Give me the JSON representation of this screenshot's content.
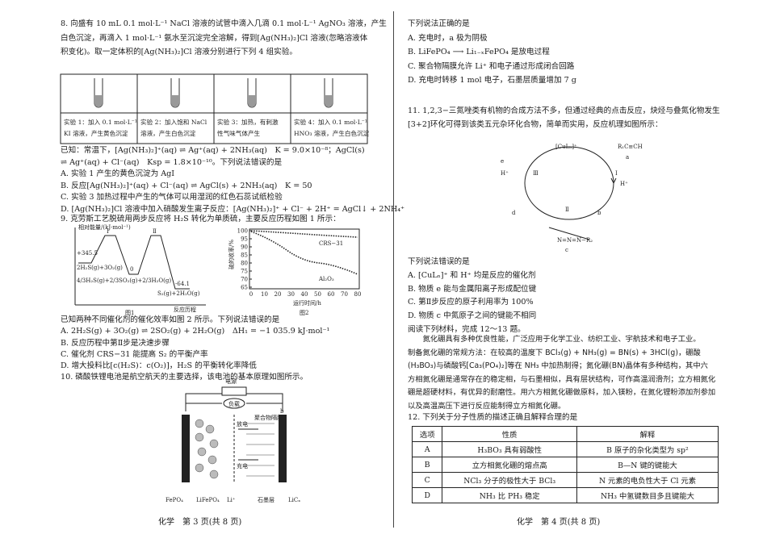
{
  "left": {
    "q8": {
      "lines": [
        "8. 向盛有 10 mL 0.1 mol·L⁻¹ NaCl 溶液的试管中滴入几滴 0.1 mol·L⁻¹ AgNO₃ 溶液，产生",
        "白色沉淀，再滴入 1 mol·L⁻¹ 氨水至沉淀完全溶解，得到[Ag(NH₃)₂]Cl 溶液(忽略溶液体",
        "积变化)。取一定体积的[Ag(NH₃)₂]Cl 溶液分别进行下列 4 组实验。"
      ],
      "table": [
        [
          "实验 1：加入 0.1 mol·L⁻¹",
          "KI 溶液，产生黄色沉淀"
        ],
        [
          "实验 2：加入饱和 NaCl",
          "溶液，产生白色沉淀"
        ],
        [
          "实验 3：加热，有刺激",
          "性气味气体产生"
        ],
        [
          "实验 4：加入 0.1 mol·L⁻¹",
          "HNO₃ 溶液，产生白色沉淀"
        ]
      ],
      "after": [
        "已知：常温下，[Ag(NH₃)₂]⁺(aq) ⇌ Ag⁺(aq) + 2NH₃(aq)　K = 9.0×10⁻⁸；AgCl(s)",
        "⇌ Ag⁺(aq) + Cl⁻(aq)　Ksp = 1.8×10⁻¹⁰。下列说法错误的是",
        "A. 实验 1 产生的黄色沉淀为 AgI",
        "B. 反应[Ag(NH₃)₂]⁺(aq) + Cl⁻(aq) ⇌ AgCl(s) + 2NH₃(aq)　K = 50",
        "C. 实验 3 加热过程中产生的气体可以用湿润的红色石蕊试纸检验",
        "D. [Ag(NH₃)₂]Cl 溶液中加入硝酸发生离子反应：[Ag(NH₃)₂]⁺ + Cl⁻ + 2H⁺ = AgCl↓ + 2NH₄⁺"
      ]
    },
    "q9": {
      "lines": [
        "9. 克劳斯工艺脱硫用两步反应将 H₂S 转化为单质硫，主要反应历程如图 1 所示："
      ],
      "fig1": {
        "ylabel": "相对能量/(kJ·mol⁻¹)",
        "step1": "Ⅰ",
        "step2": "Ⅱ",
        "peak": "+345.5",
        "start": "2H₂S(g)+3O₂(g)",
        "zero": "0",
        "mid": "4/3H₂S(g)+2/3SO₂(g)+2/3H₂O(g)",
        "end_value": "-64.1",
        "end": "S₂(g)+2H₂O(g)",
        "xlabel": "反应历程",
        "caption": "图1"
      },
      "fig2": {
        "ylabel": "硫的收率/%",
        "yticks": [
          "100",
          "95",
          "90",
          "85",
          "80",
          "75",
          "70",
          "65"
        ],
        "xticks": [
          "0",
          "10",
          "20",
          "30",
          "40",
          "50",
          "60",
          "70",
          "80"
        ],
        "series1": "CRS−31",
        "series2": "Al₂O₃",
        "xlabel": "运行时间/h",
        "caption": "图2"
      },
      "after": [
        "已知两种不同催化剂的催化效率如图 2 所示。下列说法错误的是",
        "A. 2H₂S(g) + 3O₂(g) ⇌ 2SO₂(g) + 2H₂O(g)　ΔH₁ = −1 035.9 kJ·mol⁻¹",
        "B. 反应历程中第Ⅱ步是决速步骤",
        "C. 催化剂 CRS−31 能提高 S₂ 的平衡产率",
        "D. 增大投料比[c(H₂S)：c(O₂)]，H₂S 的平衡转化率降低"
      ]
    },
    "q10": {
      "lines": [
        "10. 磷酸铁锂电池是航空航天的主要选择，该电池的基本原理如图所示。"
      ],
      "fig": {
        "power": "电源",
        "load": "负载",
        "membrane": "聚合物隔膜",
        "a": "a",
        "b": "b",
        "discharge": "放电",
        "charge": "充电",
        "legend": [
          "FePO₄",
          "LiFePO₄",
          "Li⁺",
          "石墨层",
          "LiCₓ"
        ]
      }
    }
  },
  "right": {
    "q10_options": [
      "下列说法正确的是",
      "A. 充电时，a 极为阴极",
      "B. LiFePO₄ ⟶ Li₁₋ₓFePO₄ 是放电过程",
      "C. 聚合物隔膜允许 Li⁺ 和电子通过形成闭合回路",
      "D. 充电时转移 1 mol 电子，石墨层质量增加 7 g"
    ],
    "q11": {
      "lines": [
        "11. 1,2,3−三氮唑类有机物的合成方法不多，但通过经典的点击反应，炔烃与叠氮化物发生",
        "[3+2]环化可得到该类五元杂环化合物，简单而实用，反应机理如图所示："
      ],
      "fig": {
        "catalyst": "[CuLₙ]⁺",
        "alkyne": "R₁C≡CH",
        "a": "a",
        "step1": "Ⅰ",
        "h1": "H⁺",
        "b": "b",
        "azide": "N=N=N−R₂",
        "c": "c",
        "step2": "Ⅱ",
        "d": "d",
        "step3": "Ⅲ",
        "h2": "H⁺",
        "e": "e"
      },
      "after": [
        "下列说法错误的是",
        "A. [CuLₙ]⁺ 和 H⁺ 均是反应的催化剂",
        "B. 物质 e 能与金属阳离子形成配位键",
        "C. 第Ⅱ步反应的原子利用率为 100%",
        "D. 物质 c 中氮原子之间的键能不相同",
        "阅读下列材料，完成 12～13 题。"
      ]
    },
    "reading": [
      "　　氮化硼具有多种优良性能，广泛应用于化学工业、纺织工业、宇航技术和电子工业。",
      "制备氮化硼的常规方法：在较高的温度下 BCl₃(g) + NH₃(g) = BN(s) + 3HCl(g)，硼酸",
      "(H₃BO₃)与磷酸钙[Ca₃(PO₄)₂]等在 NH₃ 中加热制得；氮化硼(BN)晶体有多种结构，其中六",
      "方相氮化硼是通常存在的稳定相，与石墨相似，具有层状结构，可作高温润滑剂；立方相氮化",
      "硼是超硬材料，有优异的耐磨性。用六方相氮化硼做原料，加入镁粉，在氮化锂粉添加剂参加",
      "以及高温高压下进行反应能制得立方相氮化硼。"
    ],
    "q12": {
      "lines": [
        "12. 下列关于分子性质的描述正确且解释合理的是"
      ],
      "table": {
        "header": [
          "选项",
          "性质",
          "解释"
        ],
        "rows": [
          [
            "A",
            "H₃BO₃ 具有弱酸性",
            "B 原子的杂化类型为 sp²"
          ],
          [
            "B",
            "立方相氮化硼的熔点高",
            "B—N 键的键能大"
          ],
          [
            "C",
            "NCl₃ 分子的极性大于 BCl₃",
            "N 元素的电负性大于 Cl 元素"
          ],
          [
            "D",
            "NH₃ 比 PH₃ 稳定",
            "NH₃ 中氢键数目多且键能大"
          ]
        ]
      }
    }
  },
  "footer": {
    "left": "化学　第 3 页(共 8 页)",
    "right": "化学　第 4 页(共 8 页)"
  }
}
